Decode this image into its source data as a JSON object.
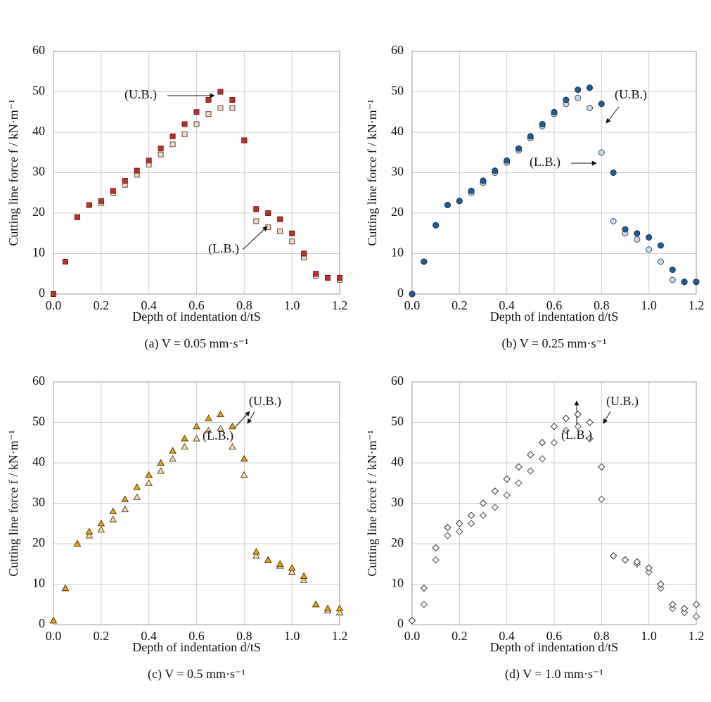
{
  "chart_data": [
    {
      "type": "scatter",
      "marker": "square",
      "caption": "(a) V = 0.05 mm·s⁻¹",
      "xlabel": "Depth of indentation d/tS",
      "ylabel": "Cutting line force f / kN·m⁻¹",
      "x": [
        0,
        0.05,
        0.1,
        0.15,
        0.2,
        0.25,
        0.3,
        0.35,
        0.4,
        0.45,
        0.5,
        0.55,
        0.6,
        0.65,
        0.7,
        0.75,
        0.8,
        0.85,
        0.9,
        0.95,
        1.0,
        1.05,
        1.1,
        1.15,
        1.2
      ],
      "series": [
        {
          "name": "(L.B.)",
          "color": "#ecdccb",
          "edge": "#6b4a3a",
          "values": [
            0,
            8,
            19,
            22,
            22.5,
            25,
            27,
            29.5,
            32,
            34.5,
            37,
            39.5,
            42,
            44.5,
            46,
            46,
            38,
            18,
            16.5,
            15.5,
            13,
            9,
            4.5,
            4,
            3.5
          ]
        },
        {
          "name": "(U.B.)",
          "color": "#c0302b",
          "edge": "#6b1a17",
          "values": [
            0,
            8,
            19,
            22,
            23,
            25.5,
            28,
            30.5,
            33,
            36,
            39,
            42,
            45,
            48,
            50,
            48,
            38,
            21,
            20,
            18.5,
            15,
            10,
            5,
            4,
            4
          ]
        }
      ],
      "xlim": [
        0,
        1.2
      ],
      "ylim": [
        0,
        60
      ],
      "xticks": [
        {
          "value": 0,
          "label": "0.0"
        },
        {
          "value": 0.2,
          "label": "0.2"
        },
        {
          "value": 0.4,
          "label": "0.4"
        },
        {
          "value": 0.6,
          "label": "0.6"
        },
        {
          "value": 0.8,
          "label": "0.8"
        },
        {
          "value": 1.0,
          "label": "1.0"
        },
        {
          "value": 1.2,
          "label": "1.2"
        }
      ],
      "yticks": [
        0,
        10,
        20,
        30,
        40,
        50,
        60
      ],
      "grid": true
    },
    {
      "type": "scatter",
      "marker": "circle",
      "caption": "(b) V = 0.25 mm·s⁻¹",
      "xlabel": "Depth of indentation d/tS",
      "ylabel": "Cutting line force f / kN·m⁻¹",
      "x": [
        0,
        0.05,
        0.1,
        0.15,
        0.2,
        0.25,
        0.3,
        0.35,
        0.4,
        0.45,
        0.5,
        0.55,
        0.6,
        0.65,
        0.7,
        0.75,
        0.8,
        0.85,
        0.9,
        0.95,
        1.0,
        1.05,
        1.1,
        1.15,
        1.2
      ],
      "series": [
        {
          "name": "(L.B.)",
          "color": "#c9dcef",
          "edge": "#3a4a5a",
          "values": [
            0,
            8,
            17,
            22,
            23,
            25,
            27.5,
            30,
            32.5,
            35.5,
            38.5,
            41.5,
            44.5,
            47,
            48.5,
            46,
            35,
            18,
            15,
            13.5,
            11,
            8,
            3.5,
            3,
            3
          ]
        },
        {
          "name": "(U.B.)",
          "color": "#1f5f99",
          "edge": "#0d2a45",
          "values": [
            0,
            8,
            17,
            22,
            23,
            25.5,
            28,
            30.5,
            33,
            36,
            39,
            42,
            45,
            48,
            50.5,
            51,
            47,
            30,
            16,
            15,
            14,
            12,
            6,
            3,
            3
          ]
        }
      ],
      "xlim": [
        0,
        1.2
      ],
      "ylim": [
        0,
        60
      ],
      "xticks": [
        {
          "value": 0,
          "label": "0.0"
        },
        {
          "value": 0.2,
          "label": "0.2"
        },
        {
          "value": 0.4,
          "label": "0.4"
        },
        {
          "value": 0.6,
          "label": "0.6"
        },
        {
          "value": 0.8,
          "label": "0.8"
        },
        {
          "value": 1.0,
          "label": "1.0"
        },
        {
          "value": 1.2,
          "label": "1.2"
        }
      ],
      "yticks": [
        0,
        10,
        20,
        30,
        40,
        50,
        60
      ],
      "grid": true
    },
    {
      "type": "scatter",
      "marker": "triangle",
      "caption": "(c) V = 0.5 mm·s⁻¹",
      "xlabel": "Depth of indentation d/tS",
      "ylabel": "Cutting line force f / kN·m⁻¹",
      "x": [
        0,
        0.05,
        0.1,
        0.15,
        0.2,
        0.25,
        0.3,
        0.35,
        0.4,
        0.45,
        0.5,
        0.55,
        0.6,
        0.65,
        0.7,
        0.75,
        0.8,
        0.85,
        0.9,
        0.95,
        1.0,
        1.05,
        1.1,
        1.15,
        1.2
      ],
      "series": [
        {
          "name": "(L.B.)",
          "color": "#f3dcb0",
          "edge": "#5a4a2a",
          "values": [
            1,
            9,
            20,
            22,
            23.5,
            26,
            28.5,
            31.5,
            35,
            38,
            41,
            44,
            46,
            48,
            48.5,
            44,
            37,
            17,
            16,
            14.5,
            13,
            11,
            5,
            3.5,
            3
          ]
        },
        {
          "name": "(U.B.)",
          "color": "#e8a317",
          "edge": "#5a3d05",
          "values": [
            1,
            9,
            20,
            23,
            25,
            28,
            31,
            34,
            37,
            40,
            43,
            46,
            49,
            51,
            52,
            49,
            41,
            18,
            16,
            15,
            14,
            12,
            5,
            4,
            4
          ]
        }
      ],
      "xlim": [
        0,
        1.2
      ],
      "ylim": [
        0,
        60
      ],
      "xticks": [
        {
          "value": 0,
          "label": "0.0"
        },
        {
          "value": 0.2,
          "label": "0.2"
        },
        {
          "value": 0.4,
          "label": "0.4"
        },
        {
          "value": 0.6,
          "label": "0.6"
        },
        {
          "value": 0.8,
          "label": "0.8"
        },
        {
          "value": 1.0,
          "label": "1.0"
        },
        {
          "value": 1.2,
          "label": "1.2"
        }
      ],
      "yticks": [
        0,
        10,
        20,
        30,
        40,
        50,
        60
      ],
      "grid": true
    },
    {
      "type": "scatter",
      "marker": "diamond",
      "caption": "(d) V = 1.0 mm·s⁻¹",
      "xlabel": "Depth of indentation d/tS",
      "ylabel": "Cutting line force f / kN·m⁻¹",
      "x": [
        0,
        0.05,
        0.1,
        0.15,
        0.2,
        0.25,
        0.3,
        0.35,
        0.4,
        0.45,
        0.5,
        0.55,
        0.6,
        0.65,
        0.7,
        0.75,
        0.8,
        0.85,
        0.9,
        0.95,
        1.0,
        1.05,
        1.1,
        1.15,
        1.2
      ],
      "series": [
        {
          "name": "(L.B.)",
          "color": "#f4f4f4",
          "edge": "#555555",
          "values": [
            1,
            5,
            16,
            22,
            23,
            25,
            27,
            29,
            32,
            35,
            38,
            41,
            45,
            48,
            49,
            46,
            31,
            17,
            16,
            15,
            13,
            9,
            4,
            3,
            2
          ]
        },
        {
          "name": "(U.B.)",
          "color": "#ffffff",
          "edge": "#333333",
          "values": [
            1,
            9,
            19,
            24,
            25,
            27,
            30,
            33,
            36,
            39,
            42,
            45,
            49,
            51,
            52,
            50,
            39,
            17,
            16,
            15.5,
            14,
            10,
            5,
            4,
            5
          ]
        }
      ],
      "xlim": [
        0,
        1.2
      ],
      "ylim": [
        0,
        60
      ],
      "xticks": [
        {
          "value": 0,
          "label": "0.0"
        },
        {
          "value": 0.2,
          "label": "0.2"
        },
        {
          "value": 0.4,
          "label": "0.4"
        },
        {
          "value": 0.6,
          "label": "0.6"
        },
        {
          "value": 0.8,
          "label": "0.8"
        },
        {
          "value": 1.0,
          "label": "1.0"
        },
        {
          "value": 1.2,
          "label": "1.2"
        }
      ],
      "yticks": [
        0,
        10,
        20,
        30,
        40,
        50,
        60
      ],
      "grid": true
    }
  ]
}
